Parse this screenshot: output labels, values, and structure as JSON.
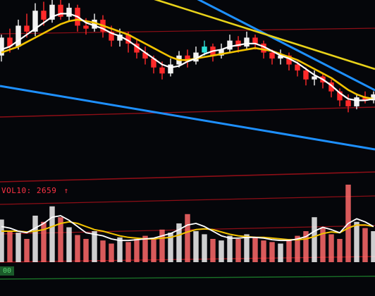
{
  "volume_indicator": {
    "label": "VOL10:",
    "value": "2659",
    "arrow": "↑",
    "bottom_tag": "00"
  },
  "colors": {
    "up": "#f2f2f2",
    "down": "#ff2a2a",
    "cyan": "#2de0d8",
    "ma_white": "#ffffff",
    "ma_yellow": "#f2c300",
    "trend_blue": "#1e90ff",
    "trend_yellow": "#e8d21a",
    "grid_red": "#b0101a",
    "grid_green": "#1f8a2f"
  },
  "chart_data": {
    "type": "candlestick",
    "title": "",
    "grid": "horizontal lines only",
    "price_range": [
      0,
      100
    ],
    "volume_range": [
      0,
      100
    ],
    "candles": [
      [
        60,
        72,
        74,
        56
      ],
      [
        72,
        66,
        78,
        62
      ],
      [
        66,
        80,
        84,
        64
      ],
      [
        80,
        76,
        88,
        72
      ],
      [
        76,
        90,
        95,
        73
      ],
      [
        90,
        84,
        96,
        80
      ],
      [
        84,
        94,
        99,
        82
      ],
      [
        94,
        86,
        98,
        84
      ],
      [
        86,
        92,
        95,
        83
      ],
      [
        92,
        80,
        94,
        76
      ],
      [
        80,
        78,
        85,
        74
      ],
      [
        78,
        84,
        88,
        76
      ],
      [
        84,
        76,
        87,
        72
      ],
      [
        76,
        70,
        80,
        66
      ],
      [
        70,
        74,
        78,
        66
      ],
      [
        74,
        68,
        76,
        62
      ],
      [
        68,
        62,
        71,
        58
      ],
      [
        62,
        58,
        66,
        54
      ],
      [
        58,
        52,
        60,
        48
      ],
      [
        52,
        48,
        56,
        44
      ],
      [
        48,
        54,
        58,
        46
      ],
      [
        54,
        60,
        63,
        52
      ],
      [
        60,
        56,
        64,
        52
      ],
      [
        56,
        62,
        66,
        54
      ],
      [
        62,
        66,
        70,
        60
      ],
      [
        66,
        60,
        68,
        56
      ],
      [
        60,
        64,
        68,
        58
      ],
      [
        64,
        70,
        74,
        62
      ],
      [
        70,
        66,
        73,
        62
      ],
      [
        66,
        72,
        76,
        64
      ],
      [
        72,
        68,
        74,
        64
      ],
      [
        68,
        62,
        70,
        58
      ],
      [
        62,
        58,
        64,
        54
      ],
      [
        58,
        60,
        64,
        54
      ],
      [
        60,
        54,
        62,
        50
      ],
      [
        54,
        50,
        56,
        46
      ],
      [
        50,
        44,
        52,
        40
      ],
      [
        44,
        46,
        50,
        40
      ],
      [
        46,
        42,
        48,
        38
      ],
      [
        42,
        36,
        44,
        32
      ],
      [
        36,
        30,
        38,
        26
      ],
      [
        30,
        26,
        34,
        22
      ],
      [
        26,
        32,
        34,
        24
      ],
      [
        32,
        30,
        36,
        28
      ],
      [
        30,
        34,
        36,
        28
      ]
    ],
    "volume": [
      55,
      40,
      38,
      30,
      60,
      52,
      72,
      58,
      45,
      35,
      30,
      40,
      28,
      24,
      32,
      26,
      30,
      34,
      30,
      42,
      38,
      50,
      62,
      40,
      36,
      30,
      28,
      34,
      30,
      36,
      32,
      28,
      26,
      24,
      30,
      34,
      40,
      58,
      44,
      36,
      30,
      100,
      52,
      44,
      40
    ],
    "ma_white": [
      64,
      66,
      70,
      74,
      78,
      82,
      86,
      88,
      88,
      86,
      82,
      80,
      78,
      75,
      73,
      70,
      66,
      62,
      58,
      54,
      52,
      53,
      56,
      58,
      61,
      63,
      64,
      66,
      67,
      68,
      68,
      66,
      63,
      60,
      58,
      55,
      51,
      47,
      44,
      40,
      35,
      31,
      30,
      30,
      31
    ],
    "ma_yellow": [
      62,
      64,
      66,
      69,
      72,
      75,
      78,
      81,
      83,
      84,
      83,
      82,
      80,
      78,
      76,
      74,
      71,
      68,
      65,
      62,
      59,
      57,
      57,
      58,
      59,
      60,
      61,
      62,
      63,
      64,
      65,
      64,
      63,
      61,
      59,
      57,
      54,
      51,
      48,
      45,
      41,
      37,
      34,
      32,
      31
    ],
    "vol_ma_white": [
      46,
      44,
      40,
      38,
      44,
      50,
      58,
      60,
      54,
      46,
      38,
      36,
      34,
      30,
      28,
      28,
      29,
      30,
      31,
      34,
      37,
      42,
      48,
      50,
      46,
      40,
      34,
      31,
      31,
      32,
      32,
      31,
      29,
      28,
      28,
      30,
      33,
      40,
      45,
      42,
      38,
      50,
      56,
      52,
      46
    ],
    "vol_ma_yellow": [
      40,
      40,
      40,
      39,
      40,
      42,
      46,
      50,
      52,
      50,
      46,
      42,
      40,
      37,
      34,
      32,
      31,
      30,
      30,
      31,
      32,
      35,
      39,
      42,
      43,
      42,
      39,
      36,
      34,
      33,
      32,
      32,
      31,
      30,
      29,
      29,
      30,
      33,
      37,
      39,
      38,
      44,
      48,
      48,
      46
    ]
  }
}
